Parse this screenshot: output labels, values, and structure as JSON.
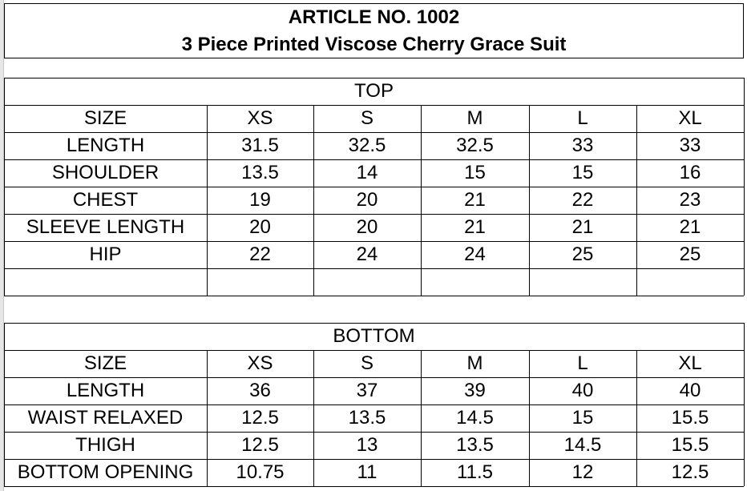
{
  "title": {
    "article": "ARTICLE NO. 1002",
    "product": "3 Piece Printed Viscose Cherry Grace Suit"
  },
  "sections": [
    {
      "heading": "TOP",
      "sizes": [
        "SIZE",
        "XS",
        "S",
        "M",
        "L",
        "XL"
      ],
      "rows": [
        [
          "LENGTH",
          "31.5",
          "32.5",
          "32.5",
          "33",
          "33"
        ],
        [
          "SHOULDER",
          "13.5",
          "14",
          "15",
          "15",
          "16"
        ],
        [
          "CHEST",
          "19",
          "20",
          "21",
          "22",
          "23"
        ],
        [
          "SLEEVE LENGTH",
          "20",
          "20",
          "21",
          "21",
          "21"
        ],
        [
          "HIP",
          "22",
          "24",
          "24",
          "25",
          "25"
        ],
        [
          "",
          "",
          "",
          "",
          "",
          ""
        ]
      ]
    },
    {
      "heading": "BOTTOM",
      "sizes": [
        "SIZE",
        "XS",
        "S",
        "M",
        "L",
        "XL"
      ],
      "rows": [
        [
          "LENGTH",
          "36",
          "37",
          "39",
          "40",
          "40"
        ],
        [
          "WAIST RELAXED",
          "12.5",
          "13.5",
          "14.5",
          "15",
          "15.5"
        ],
        [
          "THIGH",
          "12.5",
          "13",
          "13.5",
          "14.5",
          "15.5"
        ],
        [
          "BOTTOM OPENING",
          "10.75",
          "11",
          "11.5",
          "12",
          "12.5"
        ]
      ]
    }
  ]
}
